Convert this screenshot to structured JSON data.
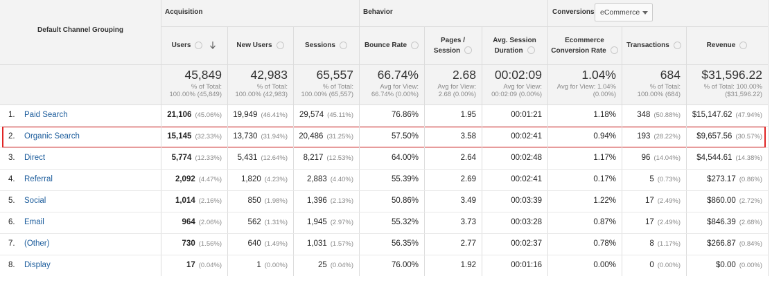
{
  "header": {
    "dimension": "Default Channel Grouping",
    "groups": [
      "Acquisition",
      "Behavior",
      "Conversions"
    ],
    "conversion_select": "eCommerce",
    "columns": [
      [
        "Users"
      ],
      [
        "New Users"
      ],
      [
        "Sessions"
      ],
      [
        "Bounce Rate"
      ],
      [
        "Pages /",
        "Session"
      ],
      [
        "Avg. Session",
        "Duration"
      ],
      [
        "Ecommerce",
        "Conversion Rate"
      ],
      [
        "Transactions"
      ],
      [
        "Revenue"
      ]
    ]
  },
  "totals": [
    {
      "value": "45,849",
      "note": [
        "% of Total:",
        "100.00% (45,849)"
      ]
    },
    {
      "value": "42,983",
      "note": [
        "% of Total:",
        "100.00% (42,983)"
      ]
    },
    {
      "value": "65,557",
      "note": [
        "% of Total:",
        "100.00% (65,557)"
      ]
    },
    {
      "value": "66.74%",
      "note": [
        "Avg for View:",
        "66.74% (0.00%)"
      ]
    },
    {
      "value": "2.68",
      "note": [
        "Avg for View:",
        "2.68 (0.00%)"
      ]
    },
    {
      "value": "00:02:09",
      "note": [
        "Avg for View:",
        "00:02:09 (0.00%)"
      ]
    },
    {
      "value": "1.04%",
      "note": [
        "Avg for View: 1.04%",
        "(0.00%)"
      ]
    },
    {
      "value": "684",
      "note": [
        "% of Total:",
        "100.00% (684)"
      ]
    },
    {
      "value": "$31,596.22",
      "note": [
        "% of Total: 100.00%",
        "($31,596.22)"
      ]
    }
  ],
  "rows": [
    {
      "index": "1.",
      "name": "Paid Search",
      "cells": [
        [
          "21,106",
          "(45.06%)"
        ],
        [
          "19,949",
          "(46.41%)"
        ],
        [
          "29,574",
          "(45.11%)"
        ],
        [
          "76.86%"
        ],
        [
          "1.95"
        ],
        [
          "00:01:21"
        ],
        [
          "1.18%"
        ],
        [
          "348",
          "(50.88%)"
        ],
        [
          "$15,147.62",
          "(47.94%)"
        ]
      ]
    },
    {
      "index": "2.",
      "name": "Organic Search",
      "cells": [
        [
          "15,145",
          "(32.33%)"
        ],
        [
          "13,730",
          "(31.94%)"
        ],
        [
          "20,486",
          "(31.25%)"
        ],
        [
          "57.50%"
        ],
        [
          "3.58"
        ],
        [
          "00:02:41"
        ],
        [
          "0.94%"
        ],
        [
          "193",
          "(28.22%)"
        ],
        [
          "$9,657.56",
          "(30.57%)"
        ]
      ]
    },
    {
      "index": "3.",
      "name": "Direct",
      "cells": [
        [
          "5,774",
          "(12.33%)"
        ],
        [
          "5,431",
          "(12.64%)"
        ],
        [
          "8,217",
          "(12.53%)"
        ],
        [
          "64.00%"
        ],
        [
          "2.64"
        ],
        [
          "00:02:48"
        ],
        [
          "1.17%"
        ],
        [
          "96",
          "(14.04%)"
        ],
        [
          "$4,544.61",
          "(14.38%)"
        ]
      ]
    },
    {
      "index": "4.",
      "name": "Referral",
      "cells": [
        [
          "2,092",
          "(4.47%)"
        ],
        [
          "1,820",
          "(4.23%)"
        ],
        [
          "2,883",
          "(4.40%)"
        ],
        [
          "55.39%"
        ],
        [
          "2.69"
        ],
        [
          "00:02:41"
        ],
        [
          "0.17%"
        ],
        [
          "5",
          "(0.73%)"
        ],
        [
          "$273.17",
          "(0.86%)"
        ]
      ]
    },
    {
      "index": "5.",
      "name": "Social",
      "cells": [
        [
          "1,014",
          "(2.16%)"
        ],
        [
          "850",
          "(1.98%)"
        ],
        [
          "1,396",
          "(2.13%)"
        ],
        [
          "50.86%"
        ],
        [
          "3.49"
        ],
        [
          "00:03:39"
        ],
        [
          "1.22%"
        ],
        [
          "17",
          "(2.49%)"
        ],
        [
          "$860.00",
          "(2.72%)"
        ]
      ]
    },
    {
      "index": "6.",
      "name": "Email",
      "cells": [
        [
          "964",
          "(2.06%)"
        ],
        [
          "562",
          "(1.31%)"
        ],
        [
          "1,945",
          "(2.97%)"
        ],
        [
          "55.32%"
        ],
        [
          "3.73"
        ],
        [
          "00:03:28"
        ],
        [
          "0.87%"
        ],
        [
          "17",
          "(2.49%)"
        ],
        [
          "$846.39",
          "(2.68%)"
        ]
      ]
    },
    {
      "index": "7.",
      "name": "(Other)",
      "cells": [
        [
          "730",
          "(1.56%)"
        ],
        [
          "640",
          "(1.49%)"
        ],
        [
          "1,031",
          "(1.57%)"
        ],
        [
          "56.35%"
        ],
        [
          "2.77"
        ],
        [
          "00:02:37"
        ],
        [
          "0.78%"
        ],
        [
          "8",
          "(1.17%)"
        ],
        [
          "$266.87",
          "(0.84%)"
        ]
      ]
    },
    {
      "index": "8.",
      "name": "Display",
      "cells": [
        [
          "17",
          "(0.04%)"
        ],
        [
          "1",
          "(0.00%)"
        ],
        [
          "25",
          "(0.04%)"
        ],
        [
          "76.00%"
        ],
        [
          "1.92"
        ],
        [
          "00:01:16"
        ],
        [
          "0.00%"
        ],
        [
          "0",
          "(0.00%)"
        ],
        [
          "$0.00",
          "(0.00%)"
        ]
      ]
    }
  ]
}
